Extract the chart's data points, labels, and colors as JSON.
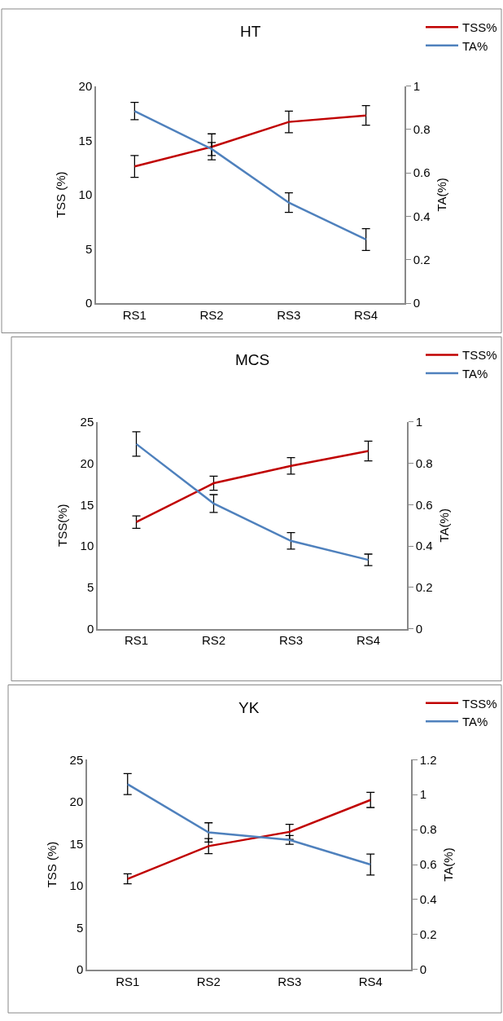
{
  "chart_data": [
    {
      "type": "line",
      "title": "HT",
      "ylabel": "TSS (%)",
      "y2label": "TA(%)",
      "categories": [
        "RS1",
        "RS2",
        "RS3",
        "RS4"
      ],
      "series": [
        {
          "name": "TSS%",
          "color": "#c00000",
          "values": [
            12.6,
            14.4,
            16.7,
            17.3
          ],
          "errors": [
            1.0,
            1.2,
            1.0,
            0.9
          ]
        },
        {
          "name": "TA%",
          "color": "#4f81bd",
          "axis": "y2",
          "values": [
            0.885,
            0.71,
            0.463,
            0.293
          ],
          "errors": [
            0.04,
            0.03,
            0.045,
            0.05
          ]
        }
      ],
      "ylim": [
        0,
        20
      ],
      "yticks": [
        0,
        5,
        10,
        15,
        20
      ],
      "y2lim": [
        0,
        1
      ],
      "y2ticks": [
        0,
        0.2,
        0.4,
        0.6,
        0.8,
        1
      ],
      "legend": "top right",
      "marker": "none",
      "line_style": "solid"
    },
    {
      "type": "line",
      "title": "MCS",
      "ylabel": "TSS(%)",
      "y2label": "TA(%)",
      "categories": [
        "RS1",
        "RS2",
        "RS3",
        "RS4"
      ],
      "series": [
        {
          "name": "TSS%",
          "color": "#c00000",
          "values": [
            12.9,
            17.6,
            19.7,
            21.5
          ],
          "errors": [
            0.75,
            0.85,
            1.0,
            1.2
          ]
        },
        {
          "name": "TA%",
          "color": "#4f81bd",
          "axis": "y2",
          "values": [
            0.894,
            0.606,
            0.425,
            0.333
          ],
          "errors": [
            0.059,
            0.043,
            0.04,
            0.028
          ]
        }
      ],
      "ylim": [
        0,
        25
      ],
      "yticks": [
        0,
        5,
        10,
        15,
        20,
        25
      ],
      "y2lim": [
        0,
        1
      ],
      "y2ticks": [
        0,
        0.2,
        0.4,
        0.6,
        0.8,
        1
      ],
      "legend": "top right",
      "marker": "none",
      "line_style": "solid"
    },
    {
      "type": "line",
      "title": "YK",
      "ylabel": "TSS (%)",
      "y2label": "TA(%)",
      "categories": [
        "RS1",
        "RS2",
        "RS3",
        "RS4"
      ],
      "series": [
        {
          "name": "TSS%",
          "color": "#c00000",
          "values": [
            10.8,
            14.7,
            16.4,
            20.2
          ],
          "errors": [
            0.6,
            0.9,
            0.9,
            0.9
          ]
        },
        {
          "name": "TA%",
          "color": "#4f81bd",
          "axis": "y2",
          "values": [
            1.06,
            0.784,
            0.741,
            0.6
          ],
          "errors": [
            0.06,
            0.055,
            0.025,
            0.06
          ]
        }
      ],
      "ylim": [
        0,
        25
      ],
      "yticks": [
        0,
        5,
        10,
        15,
        20,
        25
      ],
      "y2lim": [
        0,
        1.2
      ],
      "y2ticks": [
        0,
        0.2,
        0.4,
        0.6,
        0.8,
        1,
        1.2
      ],
      "legend": "top right",
      "marker": "none",
      "line_style": "solid"
    }
  ]
}
